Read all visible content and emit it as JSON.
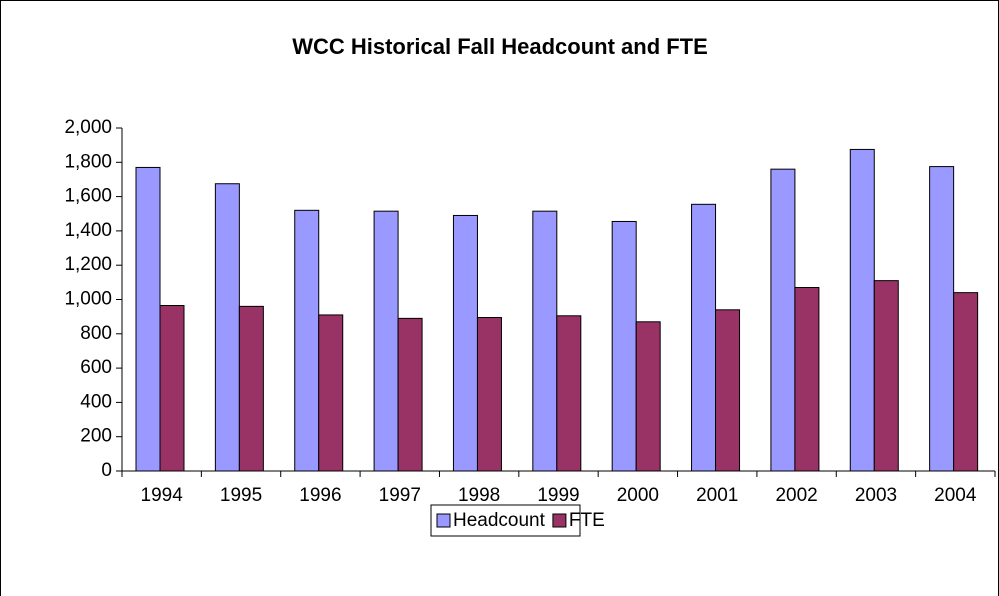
{
  "chart_data": {
    "type": "bar",
    "title": "WCC Historical Fall Headcount and FTE",
    "categories": [
      "1994",
      "1995",
      "1996",
      "1997",
      "1998",
      "1999",
      "2000",
      "2001",
      "2002",
      "2003",
      "2004"
    ],
    "series": [
      {
        "name": "Headcount",
        "color": "#9999ff",
        "values": [
          1770,
          1675,
          1520,
          1515,
          1490,
          1515,
          1455,
          1555,
          1760,
          1875,
          1775
        ]
      },
      {
        "name": "FTE",
        "color": "#993366",
        "values": [
          965,
          960,
          910,
          890,
          895,
          905,
          870,
          940,
          1070,
          1110,
          1040
        ]
      }
    ],
    "ylim": [
      0,
      2000
    ],
    "yticks": [
      0,
      200,
      400,
      600,
      800,
      {
        "value": 1000,
        "label": "1,000"
      },
      {
        "value": 1200,
        "label": "1,200"
      },
      {
        "value": 1400,
        "label": "1,400"
      },
      {
        "value": 1600,
        "label": "1,600"
      },
      {
        "value": 1800,
        "label": "1,800"
      },
      {
        "value": 2000,
        "label": "2,000"
      }
    ],
    "legend": "bottom"
  }
}
